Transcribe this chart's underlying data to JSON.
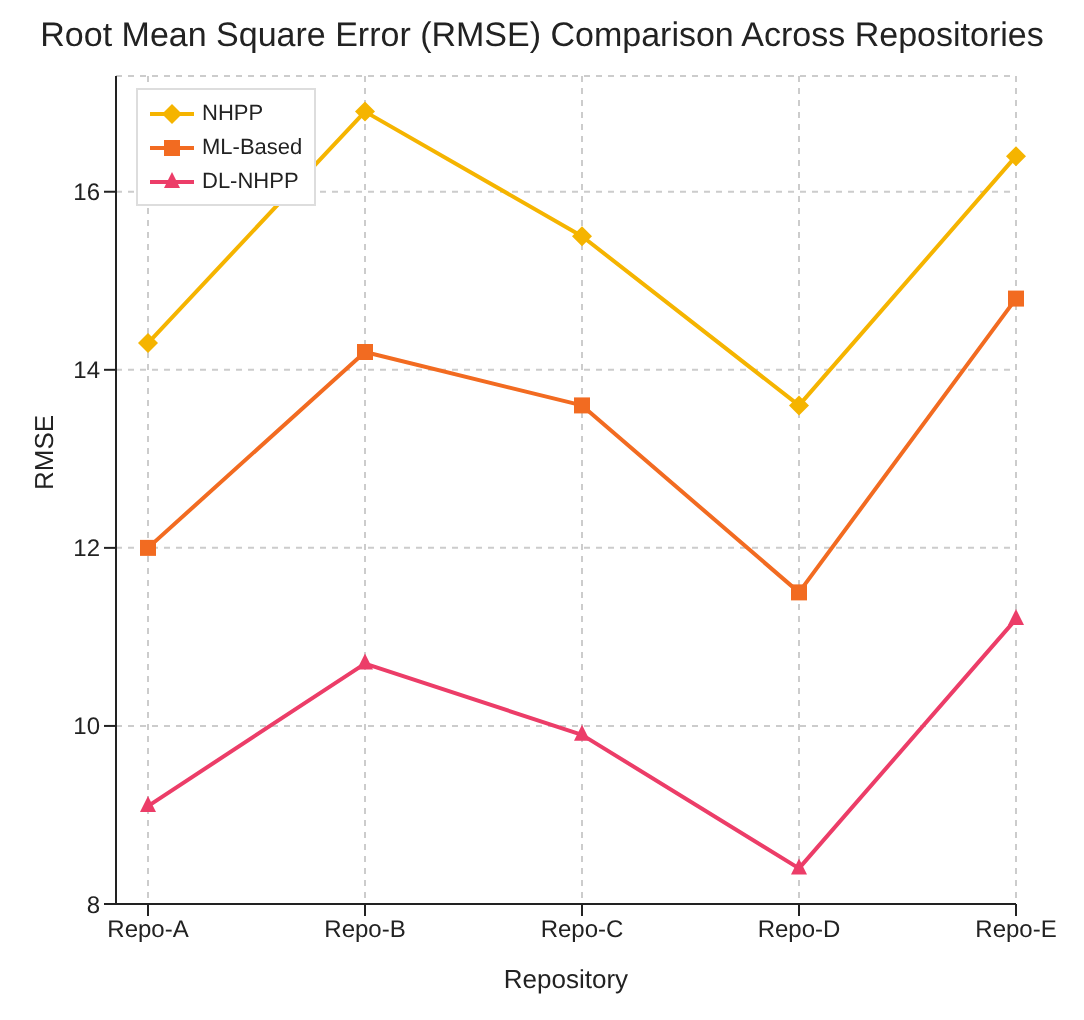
{
  "chart_data": {
    "type": "line",
    "title": "Root Mean Square Error (RMSE) Comparison Across Repositories",
    "xlabel": "Repository",
    "ylabel": "RMSE",
    "categories": [
      "Repo-A",
      "Repo-B",
      "Repo-C",
      "Repo-D",
      "Repo-E"
    ],
    "series": [
      {
        "name": "NHPP",
        "color": "#f5b400",
        "marker": "diamond",
        "values": [
          14.3,
          16.9,
          15.5,
          13.6,
          16.4
        ]
      },
      {
        "name": "ML-Based",
        "color": "#f26b21",
        "marker": "square",
        "values": [
          12.0,
          14.2,
          13.6,
          11.5,
          14.8
        ]
      },
      {
        "name": "DL-NHPP",
        "color": "#ec3d68",
        "marker": "triangle",
        "values": [
          9.1,
          10.7,
          9.9,
          8.4,
          11.2
        ]
      }
    ],
    "ylim": [
      8,
      17.3
    ],
    "yticks": [
      8,
      10,
      12,
      14,
      16
    ],
    "grid": true,
    "legend": "top left",
    "line_style": "solid"
  }
}
